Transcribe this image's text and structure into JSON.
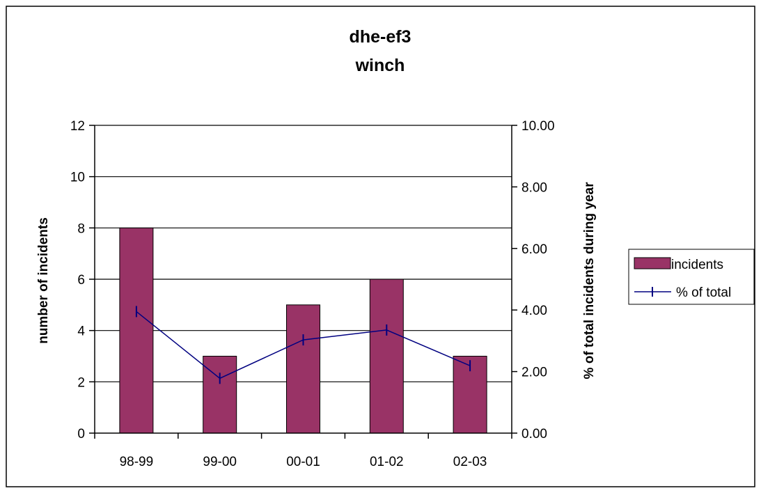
{
  "chart_data": {
    "type": "bar",
    "title": [
      "dhe-ef3",
      "winch"
    ],
    "categories": [
      "98-99",
      "99-00",
      "00-01",
      "01-02",
      "02-03"
    ],
    "series": [
      {
        "name": "incidents",
        "type": "bar",
        "axis": "left",
        "color": "#993366",
        "values": [
          8,
          3,
          5,
          6,
          3
        ]
      },
      {
        "name": "% of total",
        "type": "line",
        "axis": "right",
        "color": "#000080",
        "values": [
          3.95,
          1.78,
          3.03,
          3.35,
          2.19
        ]
      }
    ],
    "ylabel": "number of incidents",
    "y2label": "% of total incidents during year",
    "ylim": [
      0,
      12
    ],
    "y2lim": [
      0,
      10
    ],
    "yticks": [
      "0",
      "2",
      "4",
      "6",
      "8",
      "10",
      "12"
    ],
    "y2ticks": [
      "0.00",
      "2.00",
      "4.00",
      "6.00",
      "8.00",
      "10.00"
    ],
    "grid": true,
    "legend": "right"
  }
}
